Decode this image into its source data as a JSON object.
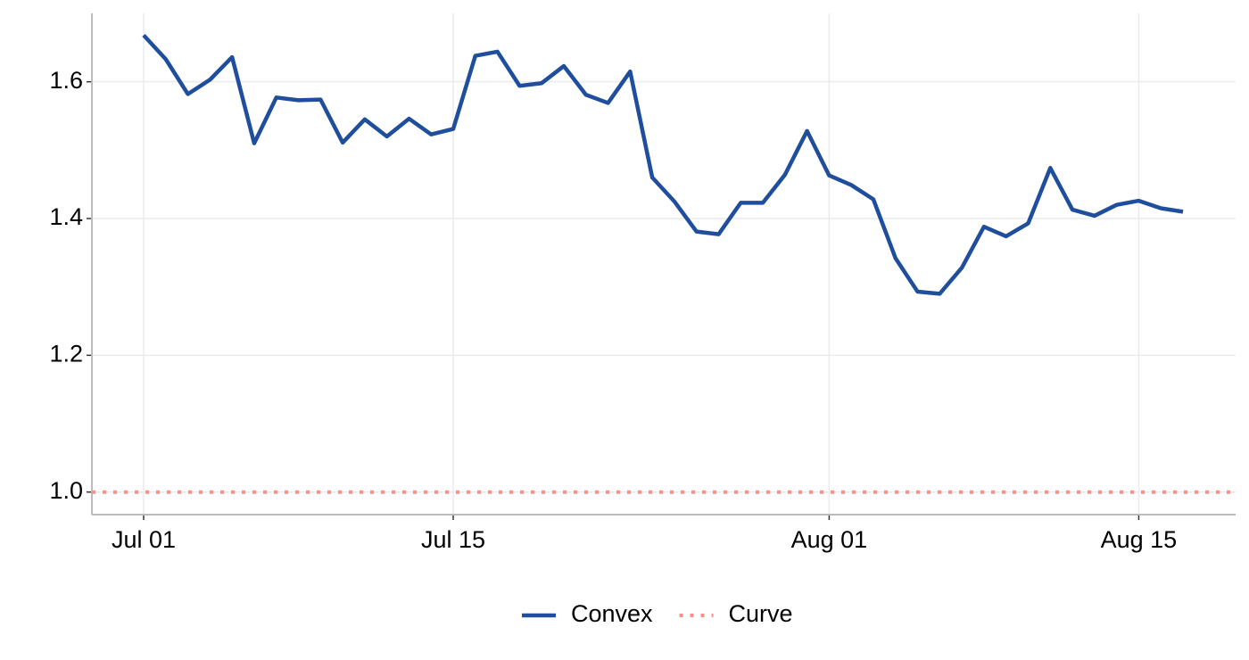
{
  "chart_data": {
    "type": "line",
    "x": [
      "Jul 01",
      "Jul 02",
      "Jul 03",
      "Jul 04",
      "Jul 05",
      "Jul 06",
      "Jul 07",
      "Jul 08",
      "Jul 09",
      "Jul 10",
      "Jul 11",
      "Jul 12",
      "Jul 13",
      "Jul 14",
      "Jul 15",
      "Jul 16",
      "Jul 17",
      "Jul 18",
      "Jul 19",
      "Jul 20",
      "Jul 21",
      "Jul 22",
      "Jul 23",
      "Jul 24",
      "Jul 25",
      "Jul 26",
      "Jul 27",
      "Jul 28",
      "Jul 29",
      "Jul 30",
      "Jul 31",
      "Aug 01",
      "Aug 02",
      "Aug 03",
      "Aug 04",
      "Aug 05",
      "Aug 06",
      "Aug 07",
      "Aug 08",
      "Aug 09",
      "Aug 10",
      "Aug 11",
      "Aug 12",
      "Aug 13",
      "Aug 14",
      "Aug 15",
      "Aug 16",
      "Aug 17"
    ],
    "series": [
      {
        "name": "Convex",
        "color": "#1f4e9c",
        "values": [
          1.668,
          1.633,
          1.582,
          1.603,
          1.636,
          1.51,
          1.577,
          1.573,
          1.574,
          1.511,
          1.545,
          1.52,
          1.546,
          1.523,
          1.531,
          1.638,
          1.644,
          1.594,
          1.598,
          1.623,
          1.581,
          1.569,
          1.615,
          1.46,
          1.425,
          1.381,
          1.377,
          1.423,
          1.423,
          1.464,
          1.528,
          1.463,
          1.449,
          1.428,
          1.342,
          1.293,
          1.29,
          1.328,
          1.388,
          1.374,
          1.393,
          1.474,
          1.413,
          1.404,
          1.42,
          1.426,
          1.415,
          1.41
        ]
      }
    ],
    "hlines": [
      {
        "name": "Curve",
        "value": 1,
        "color": "#f8918a",
        "style": "dotted"
      }
    ],
    "ylim": [
      0.967,
      1.7
    ],
    "yticks": [
      {
        "value": 1,
        "label": "1.0"
      },
      1.2,
      1.4,
      1.6
    ],
    "xticks": [
      "Jul 01",
      "Jul 15",
      "Aug 01",
      "Aug 15"
    ],
    "grid": true,
    "legend": "bottom"
  }
}
